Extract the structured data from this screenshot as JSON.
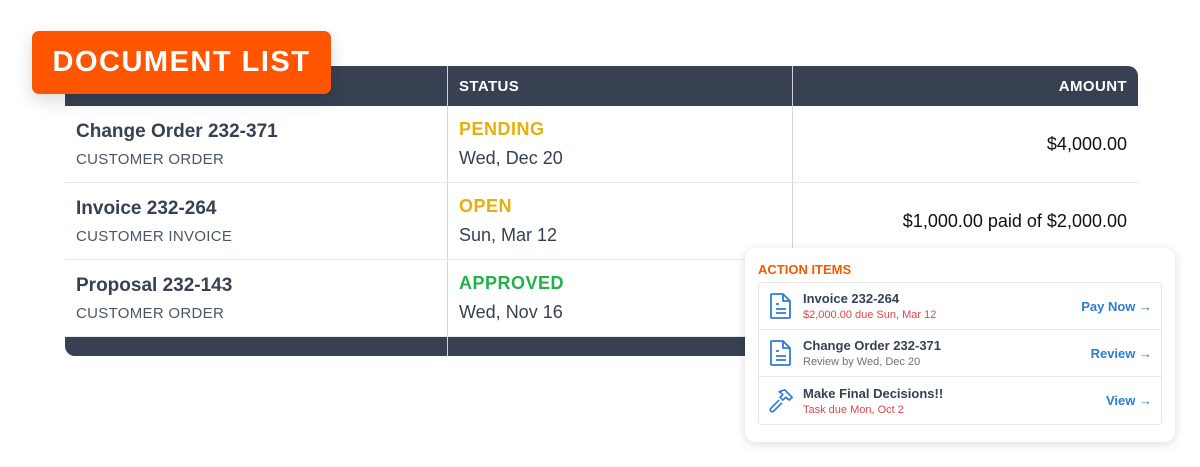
{
  "badge": "DOCUMENT LIST",
  "table": {
    "headers": [
      "",
      "STATUS",
      "AMOUNT"
    ],
    "rows": [
      {
        "name": "Change Order 232-371",
        "type": "CUSTOMER ORDER",
        "status": "PENDING",
        "status_color": "#e5b00c",
        "date": "Wed, Dec 20",
        "amount": "$4,000.00"
      },
      {
        "name": "Invoice 232-264",
        "type": "CUSTOMER INVOICE",
        "status": "OPEN",
        "status_color": "#e5b00c",
        "date": "Sun, Mar 12",
        "amount": "$1,000.00 paid of $2,000.00"
      },
      {
        "name": "Proposal 232-143",
        "type": "CUSTOMER ORDER",
        "status": "APPROVED",
        "status_color": "#22b14c",
        "date": "Wed, Nov 16",
        "amount": ""
      }
    ]
  },
  "action_items": {
    "title": "ACTION ITEMS",
    "items": [
      {
        "icon": "document-icon",
        "title": "Invoice 232-264",
        "subtitle": "$2,000.00 due  Sun, Mar 12",
        "subtitle_color": "#e0454a",
        "action": "Pay Now →"
      },
      {
        "icon": "document-icon",
        "title": "Change Order 232-371",
        "subtitle": "Review by Wed, Dec 20",
        "subtitle_color": "#6b7280",
        "action": "Review →"
      },
      {
        "icon": "hammer-icon",
        "title": "Make Final Decisions!!",
        "subtitle": "Task due Mon, Oct 2",
        "subtitle_color": "#e0454a",
        "action": "View →"
      }
    ]
  }
}
